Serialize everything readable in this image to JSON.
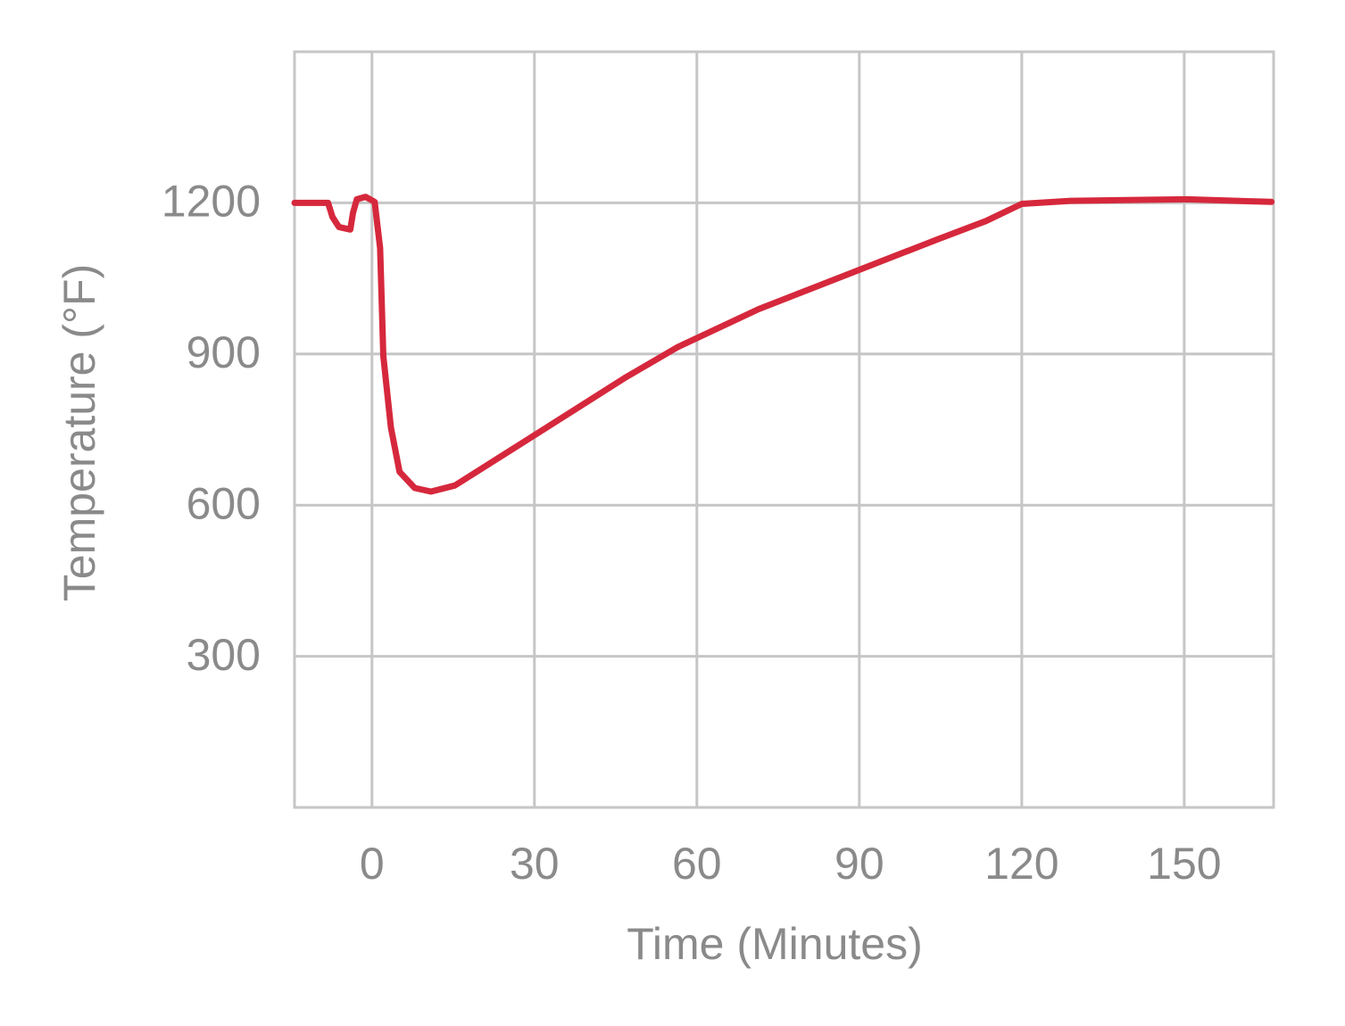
{
  "chart_data": {
    "type": "line",
    "x_label": "Time (Minutes)",
    "y_label": "Temperature (°F)",
    "xlim": [
      -14.3,
      166.5
    ],
    "ylim": [
      0,
      1500
    ],
    "xticks": [
      0,
      30,
      60,
      90,
      120,
      150
    ],
    "yticks": [
      300,
      600,
      900,
      1200
    ],
    "grid": true,
    "x": [
      -14.3,
      -8.1,
      -7.3,
      -6.1,
      -4.0,
      -3.5,
      -2.8,
      -1.2,
      0.5,
      1.5,
      2.1,
      3.5,
      5.1,
      7.9,
      10.9,
      15.3,
      30.2,
      46.6,
      56.5,
      71.4,
      89.5,
      104.3,
      113.4,
      120,
      129,
      150.5,
      166.1
    ],
    "series": [
      {
        "name": "Temperature",
        "color": "#d6283c",
        "values": [
          1200,
          1200,
          1172,
          1152,
          1147,
          1180,
          1207,
          1212,
          1202,
          1110,
          896,
          754,
          666,
          634,
          627,
          639,
          740,
          852,
          914,
          989,
          1065,
          1127,
          1164,
          1198,
          1204,
          1207,
          1202
        ]
      }
    ]
  }
}
